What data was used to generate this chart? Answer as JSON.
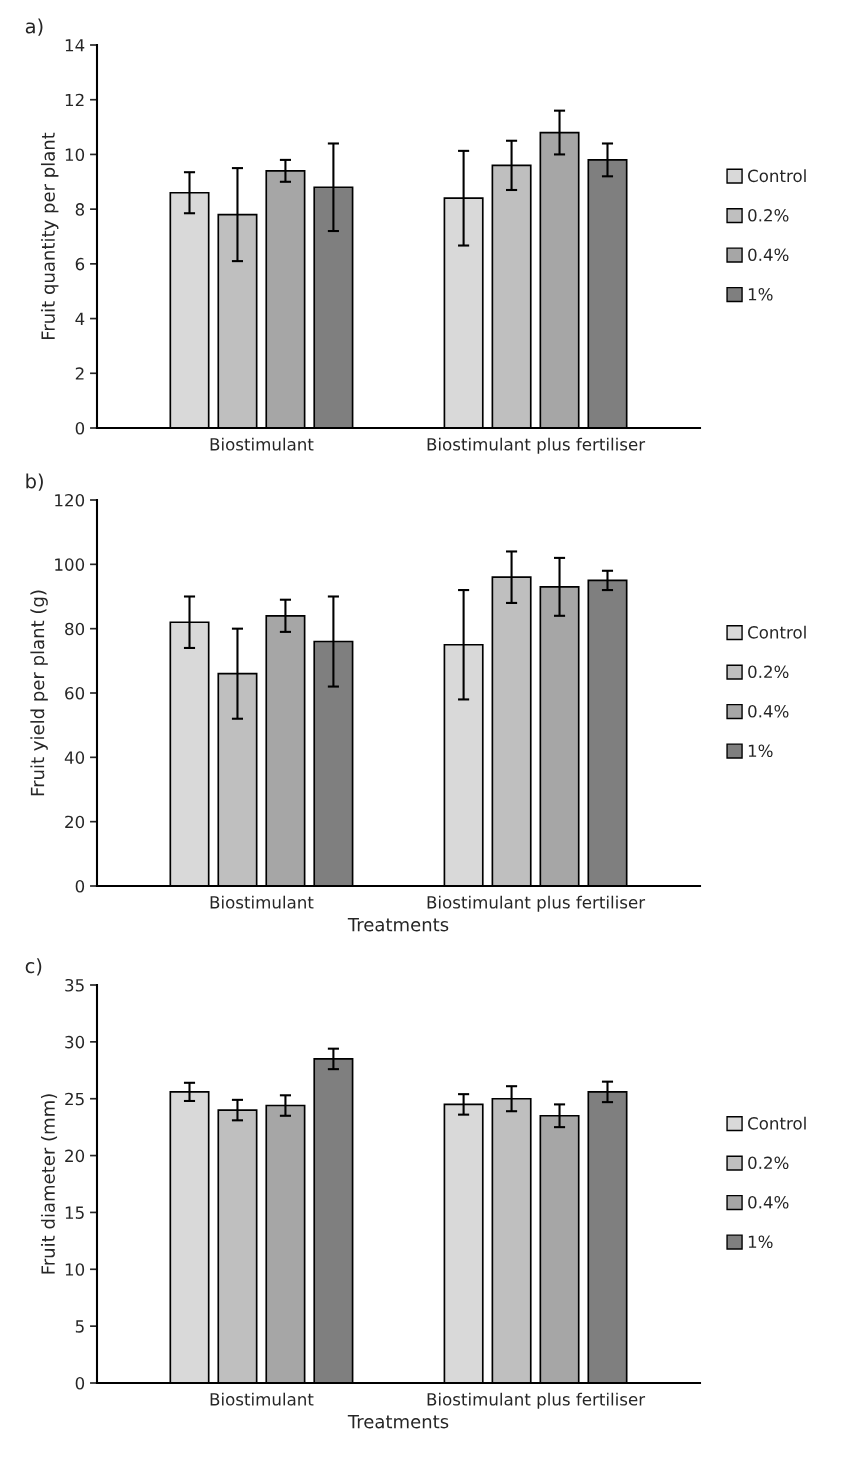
{
  "chart_data": [
    {
      "type": "bar",
      "title": "a)",
      "ylabel": "Fruit quantity per plant",
      "categories": [
        "Biostimulant",
        "Biostimulant plus fertiliser"
      ],
      "ylim": [
        0,
        14
      ],
      "yticks": [
        0,
        2,
        4,
        6,
        8,
        10,
        12,
        14
      ],
      "grid": false,
      "legend": "right",
      "series": [
        {
          "name": "Control",
          "color": "#d9d9d9",
          "values": [
            8.6,
            8.4
          ],
          "errors": [
            0.75,
            1.73
          ]
        },
        {
          "name": "0.2%",
          "color": "#bfbfbf",
          "values": [
            7.8,
            9.6
          ],
          "errors": [
            1.7,
            0.9
          ]
        },
        {
          "name": "0.4%",
          "color": "#a6a6a6",
          "values": [
            9.4,
            10.8
          ],
          "errors": [
            0.4,
            0.8
          ]
        },
        {
          "name": "1%",
          "color": "#7f7f7f",
          "values": [
            8.8,
            9.8
          ],
          "errors": [
            1.6,
            0.6
          ]
        }
      ]
    },
    {
      "type": "bar",
      "title": "b)",
      "ylabel": "Fruit yield per plant (g)",
      "xlabel": "Treatments",
      "categories": [
        "Biostimulant",
        "Biostimulant plus fertiliser"
      ],
      "ylim": [
        0,
        120
      ],
      "yticks": [
        0,
        20,
        40,
        60,
        80,
        100,
        120
      ],
      "grid": false,
      "legend": "right",
      "series": [
        {
          "name": "Control",
          "color": "#d9d9d9",
          "values": [
            82,
            75
          ],
          "errors": [
            8,
            17
          ]
        },
        {
          "name": "0.2%",
          "color": "#bfbfbf",
          "values": [
            66,
            96
          ],
          "errors": [
            14,
            8
          ]
        },
        {
          "name": "0.4%",
          "color": "#a6a6a6",
          "values": [
            84,
            93
          ],
          "errors": [
            5,
            9
          ]
        },
        {
          "name": "1%",
          "color": "#7f7f7f",
          "values": [
            76,
            95
          ],
          "errors": [
            14,
            3
          ]
        }
      ]
    },
    {
      "type": "bar",
      "title": "c)",
      "ylabel": "Fruit diameter (mm)",
      "xlabel": "Treatments",
      "categories": [
        "Biostimulant",
        "Biostimulant plus fertiliser"
      ],
      "ylim": [
        0,
        35
      ],
      "yticks": [
        0,
        5,
        10,
        15,
        20,
        25,
        30,
        35
      ],
      "grid": false,
      "legend": "right",
      "series": [
        {
          "name": "Control",
          "color": "#d9d9d9",
          "values": [
            25.6,
            24.5
          ],
          "errors": [
            0.8,
            0.9
          ]
        },
        {
          "name": "0.2%",
          "color": "#bfbfbf",
          "values": [
            24.0,
            25.0
          ],
          "errors": [
            0.9,
            1.1
          ]
        },
        {
          "name": "0.4%",
          "color": "#a6a6a6",
          "values": [
            24.4,
            23.5
          ],
          "errors": [
            0.9,
            1.0
          ]
        },
        {
          "name": "1%",
          "color": "#7f7f7f",
          "values": [
            28.5,
            25.6
          ],
          "errors": [
            0.9,
            0.9
          ]
        }
      ]
    }
  ]
}
